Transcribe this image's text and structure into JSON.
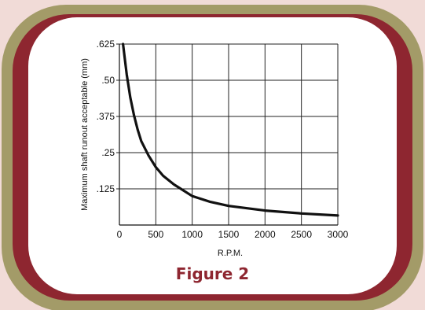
{
  "colors": {
    "page_bg": "#f1dbd7",
    "outer_frame": "#a39b68",
    "inner_frame": "#8e2630",
    "panel": "#ffffff",
    "figure_title": "#8e2630",
    "curve": "#111111",
    "grid": "#222222"
  },
  "figure_title": "Figure 2",
  "chart_data": {
    "type": "line",
    "xlabel": "R.P.M.",
    "ylabel": "Maximum shaft runout acceptable (mm)",
    "xlim": [
      0,
      3000
    ],
    "ylim": [
      0,
      0.625
    ],
    "x_ticks": [
      0,
      500,
      1000,
      1500,
      2000,
      2500,
      3000
    ],
    "x_tick_labels": [
      "0",
      "500",
      "1000",
      "1500",
      "2000",
      "2500",
      "3000"
    ],
    "y_ticks": [
      0.125,
      0.25,
      0.375,
      0.5,
      0.625
    ],
    "y_tick_labels": [
      ".125",
      ".25",
      ".375",
      ".50",
      ".625"
    ],
    "grid": true,
    "legend": "none",
    "series": [
      {
        "x": [
          50,
          100,
          150,
          200,
          250,
          300,
          400,
          500,
          600,
          750,
          1000,
          1250,
          1500,
          2000,
          2500,
          3000
        ],
        "y": [
          0.625,
          0.52,
          0.44,
          0.38,
          0.33,
          0.29,
          0.24,
          0.2,
          0.17,
          0.14,
          0.1,
          0.08,
          0.066,
          0.05,
          0.04,
          0.033
        ]
      }
    ]
  }
}
